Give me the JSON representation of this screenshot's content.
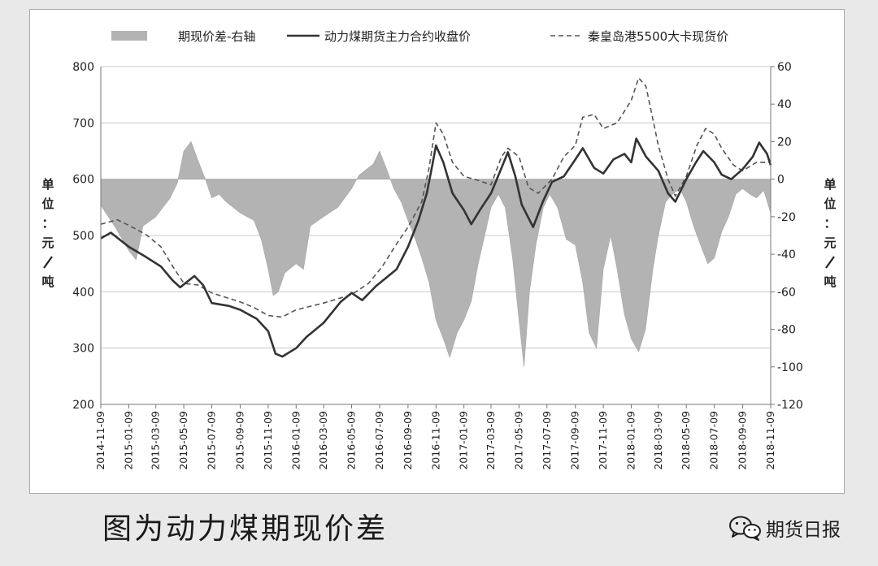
{
  "caption": "图为动力煤期现价差",
  "brand": {
    "name": "期货日报",
    "icon": "wechat-icon"
  },
  "colors": {
    "basis": "#b3b3b3",
    "futures": "#333333",
    "spot": "#555555",
    "grid": "#c8c8c8"
  },
  "chart_data": {
    "type": "line",
    "legend": [
      {
        "key": "basis",
        "label": "期现价差-右轴",
        "style": "area"
      },
      {
        "key": "futures",
        "label": "动力煤期货主力合约收盘价",
        "style": "solid"
      },
      {
        "key": "spot",
        "label": "秦皇岛港5500大卡现货价",
        "style": "dashed"
      }
    ],
    "legend_position": "top",
    "grid": "horizontal",
    "ylabel_left": "单位：元/吨",
    "ylabel_right": "单位：元/吨",
    "y_left": {
      "min": 200,
      "max": 800,
      "ticks": [
        "200",
        "300",
        "400",
        "500",
        "600",
        "700",
        "800"
      ]
    },
    "y_right": {
      "min": -120,
      "max": 60,
      "ticks": [
        "-120",
        "-100",
        "-80",
        "-60",
        "-40",
        "-20",
        "0",
        "20",
        "40",
        "60"
      ]
    },
    "x_start": "2014-11-09",
    "x_end": "2018-11-09",
    "x_ticks": [
      "2014-11-09",
      "2015-01-09",
      "2015-03-09",
      "2015-05-09",
      "2015-07-09",
      "2015-09-09",
      "2015-11-09",
      "2016-01-09",
      "2016-03-09",
      "2016-05-09",
      "2016-07-09",
      "2016-09-09",
      "2016-11-09",
      "2017-01-09",
      "2017-03-09",
      "2017-05-09",
      "2017-07-09",
      "2017-09-09",
      "2017-11-09",
      "2018-01-09",
      "2018-03-09",
      "2018-05-09",
      "2018-07-09",
      "2018-09-09",
      "2018-11-09"
    ],
    "series": [
      {
        "key": "futures",
        "name": "动力煤期货主力合约收盘价",
        "axis": "left",
        "points": [
          [
            "2014-11-09",
            495
          ],
          [
            "2014-12-01",
            505
          ],
          [
            "2015-01-09",
            480
          ],
          [
            "2015-02-15",
            462
          ],
          [
            "2015-03-20",
            445
          ],
          [
            "2015-04-15",
            420
          ],
          [
            "2015-05-01",
            408
          ],
          [
            "2015-06-01",
            428
          ],
          [
            "2015-06-20",
            412
          ],
          [
            "2015-07-09",
            380
          ],
          [
            "2015-08-15",
            375
          ],
          [
            "2015-09-09",
            368
          ],
          [
            "2015-10-15",
            352
          ],
          [
            "2015-11-09",
            330
          ],
          [
            "2015-11-25",
            290
          ],
          [
            "2015-12-10",
            285
          ],
          [
            "2016-01-09",
            300
          ],
          [
            "2016-02-01",
            320
          ],
          [
            "2016-03-09",
            345
          ],
          [
            "2016-04-15",
            382
          ],
          [
            "2016-05-09",
            398
          ],
          [
            "2016-06-01",
            385
          ],
          [
            "2016-07-01",
            410
          ],
          [
            "2016-08-15",
            440
          ],
          [
            "2016-09-09",
            480
          ],
          [
            "2016-10-01",
            525
          ],
          [
            "2016-10-20",
            575
          ],
          [
            "2016-11-01",
            625
          ],
          [
            "2016-11-09",
            660
          ],
          [
            "2016-11-25",
            630
          ],
          [
            "2016-12-15",
            575
          ],
          [
            "2017-01-09",
            545
          ],
          [
            "2017-01-25",
            520
          ],
          [
            "2017-02-15",
            548
          ],
          [
            "2017-03-09",
            575
          ],
          [
            "2017-04-01",
            620
          ],
          [
            "2017-04-15",
            648
          ],
          [
            "2017-05-01",
            605
          ],
          [
            "2017-05-15",
            555
          ],
          [
            "2017-06-09",
            515
          ],
          [
            "2017-06-30",
            560
          ],
          [
            "2017-07-20",
            595
          ],
          [
            "2017-08-15",
            605
          ],
          [
            "2017-09-09",
            635
          ],
          [
            "2017-09-25",
            655
          ],
          [
            "2017-10-20",
            620
          ],
          [
            "2017-11-09",
            610
          ],
          [
            "2017-12-01",
            635
          ],
          [
            "2017-12-25",
            645
          ],
          [
            "2018-01-09",
            630
          ],
          [
            "2018-01-20",
            672
          ],
          [
            "2018-02-10",
            640
          ],
          [
            "2018-03-09",
            615
          ],
          [
            "2018-03-30",
            575
          ],
          [
            "2018-04-15",
            560
          ],
          [
            "2018-05-09",
            600
          ],
          [
            "2018-05-30",
            630
          ],
          [
            "2018-06-15",
            650
          ],
          [
            "2018-07-09",
            630
          ],
          [
            "2018-07-25",
            608
          ],
          [
            "2018-08-15",
            600
          ],
          [
            "2018-09-09",
            618
          ],
          [
            "2018-10-01",
            640
          ],
          [
            "2018-10-15",
            665
          ],
          [
            "2018-11-01",
            645
          ],
          [
            "2018-11-09",
            625
          ]
        ]
      },
      {
        "key": "spot",
        "name": "秦皇岛港5500大卡现货价",
        "axis": "left",
        "points": [
          [
            "2014-11-09",
            520
          ],
          [
            "2014-12-15",
            528
          ],
          [
            "2015-01-09",
            518
          ],
          [
            "2015-02-15",
            502
          ],
          [
            "2015-03-20",
            480
          ],
          [
            "2015-04-15",
            445
          ],
          [
            "2015-05-09",
            415
          ],
          [
            "2015-06-09",
            412
          ],
          [
            "2015-07-09",
            398
          ],
          [
            "2015-08-09",
            390
          ],
          [
            "2015-09-09",
            382
          ],
          [
            "2015-10-09",
            372
          ],
          [
            "2015-11-09",
            358
          ],
          [
            "2015-12-09",
            355
          ],
          [
            "2016-01-09",
            368
          ],
          [
            "2016-03-09",
            380
          ],
          [
            "2016-05-09",
            395
          ],
          [
            "2016-06-15",
            415
          ],
          [
            "2016-07-15",
            445
          ],
          [
            "2016-08-15",
            485
          ],
          [
            "2016-09-09",
            515
          ],
          [
            "2016-10-09",
            560
          ],
          [
            "2016-10-25",
            620
          ],
          [
            "2016-11-09",
            700
          ],
          [
            "2016-11-25",
            680
          ],
          [
            "2016-12-15",
            630
          ],
          [
            "2017-01-09",
            605
          ],
          [
            "2017-02-09",
            598
          ],
          [
            "2017-03-09",
            590
          ],
          [
            "2017-04-01",
            640
          ],
          [
            "2017-04-15",
            655
          ],
          [
            "2017-05-09",
            640
          ],
          [
            "2017-05-30",
            585
          ],
          [
            "2017-06-20",
            575
          ],
          [
            "2017-07-20",
            600
          ],
          [
            "2017-08-15",
            640
          ],
          [
            "2017-09-09",
            660
          ],
          [
            "2017-09-25",
            710
          ],
          [
            "2017-10-20",
            715
          ],
          [
            "2017-11-09",
            690
          ],
          [
            "2017-12-09",
            700
          ],
          [
            "2018-01-09",
            740
          ],
          [
            "2018-01-25",
            780
          ],
          [
            "2018-02-10",
            765
          ],
          [
            "2018-03-09",
            660
          ],
          [
            "2018-03-30",
            600
          ],
          [
            "2018-04-15",
            570
          ],
          [
            "2018-05-09",
            605
          ],
          [
            "2018-06-01",
            660
          ],
          [
            "2018-06-20",
            690
          ],
          [
            "2018-07-09",
            680
          ],
          [
            "2018-07-25",
            655
          ],
          [
            "2018-08-20",
            625
          ],
          [
            "2018-09-09",
            615
          ],
          [
            "2018-10-09",
            630
          ],
          [
            "2018-11-09",
            630
          ]
        ]
      },
      {
        "key": "basis",
        "name": "期现价差-右轴",
        "axis": "right",
        "points": [
          [
            "2014-11-09",
            -14
          ],
          [
            "2014-12-09",
            -25
          ],
          [
            "2015-01-09",
            -38
          ],
          [
            "2015-01-25",
            -43
          ],
          [
            "2015-02-09",
            -25
          ],
          [
            "2015-03-09",
            -20
          ],
          [
            "2015-04-09",
            -10
          ],
          [
            "2015-04-25",
            -2
          ],
          [
            "2015-05-09",
            15
          ],
          [
            "2015-05-25",
            20
          ],
          [
            "2015-06-09",
            10
          ],
          [
            "2015-06-25",
            0
          ],
          [
            "2015-07-09",
            -10
          ],
          [
            "2015-07-25",
            -8
          ],
          [
            "2015-08-09",
            -12
          ],
          [
            "2015-09-09",
            -18
          ],
          [
            "2015-10-09",
            -22
          ],
          [
            "2015-10-25",
            -32
          ],
          [
            "2015-11-09",
            -48
          ],
          [
            "2015-11-20",
            -62
          ],
          [
            "2015-12-01",
            -60
          ],
          [
            "2015-12-15",
            -50
          ],
          [
            "2016-01-09",
            -45
          ],
          [
            "2016-01-25",
            -48
          ],
          [
            "2016-02-09",
            -25
          ],
          [
            "2016-03-09",
            -20
          ],
          [
            "2016-04-09",
            -15
          ],
          [
            "2016-05-09",
            -5
          ],
          [
            "2016-05-25",
            2
          ],
          [
            "2016-06-09",
            5
          ],
          [
            "2016-06-25",
            8
          ],
          [
            "2016-07-09",
            15
          ],
          [
            "2016-07-25",
            5
          ],
          [
            "2016-08-09",
            -5
          ],
          [
            "2016-08-25",
            -12
          ],
          [
            "2016-09-09",
            -22
          ],
          [
            "2016-09-25",
            -32
          ],
          [
            "2016-10-09",
            -42
          ],
          [
            "2016-10-25",
            -55
          ],
          [
            "2016-11-09",
            -75
          ],
          [
            "2016-11-25",
            -85
          ],
          [
            "2016-12-09",
            -95
          ],
          [
            "2016-12-25",
            -82
          ],
          [
            "2017-01-09",
            -75
          ],
          [
            "2017-01-25",
            -65
          ],
          [
            "2017-02-09",
            -45
          ],
          [
            "2017-02-25",
            -28
          ],
          [
            "2017-03-09",
            -15
          ],
          [
            "2017-03-25",
            -8
          ],
          [
            "2017-04-09",
            -15
          ],
          [
            "2017-04-25",
            -42
          ],
          [
            "2017-05-09",
            -75
          ],
          [
            "2017-05-20",
            -100
          ],
          [
            "2017-06-01",
            -60
          ],
          [
            "2017-06-15",
            -35
          ],
          [
            "2017-07-01",
            -15
          ],
          [
            "2017-07-15",
            -8
          ],
          [
            "2017-08-01",
            -15
          ],
          [
            "2017-08-20",
            -32
          ],
          [
            "2017-09-09",
            -35
          ],
          [
            "2017-09-25",
            -55
          ],
          [
            "2017-10-09",
            -82
          ],
          [
            "2017-10-25",
            -90
          ],
          [
            "2017-11-09",
            -48
          ],
          [
            "2017-11-25",
            -30
          ],
          [
            "2017-12-09",
            -48
          ],
          [
            "2017-12-25",
            -72
          ],
          [
            "2018-01-09",
            -85
          ],
          [
            "2018-01-25",
            -92
          ],
          [
            "2018-02-09",
            -80
          ],
          [
            "2018-02-25",
            -48
          ],
          [
            "2018-03-09",
            -30
          ],
          [
            "2018-03-25",
            -12
          ],
          [
            "2018-04-09",
            -8
          ],
          [
            "2018-04-25",
            -5
          ],
          [
            "2018-05-09",
            -12
          ],
          [
            "2018-05-25",
            -25
          ],
          [
            "2018-06-09",
            -35
          ],
          [
            "2018-06-25",
            -45
          ],
          [
            "2018-07-09",
            -42
          ],
          [
            "2018-07-25",
            -28
          ],
          [
            "2018-08-09",
            -20
          ],
          [
            "2018-08-25",
            -8
          ],
          [
            "2018-09-09",
            -5
          ],
          [
            "2018-09-25",
            -8
          ],
          [
            "2018-10-09",
            -10
          ],
          [
            "2018-10-25",
            -6
          ],
          [
            "2018-11-09",
            -18
          ]
        ]
      }
    ]
  }
}
